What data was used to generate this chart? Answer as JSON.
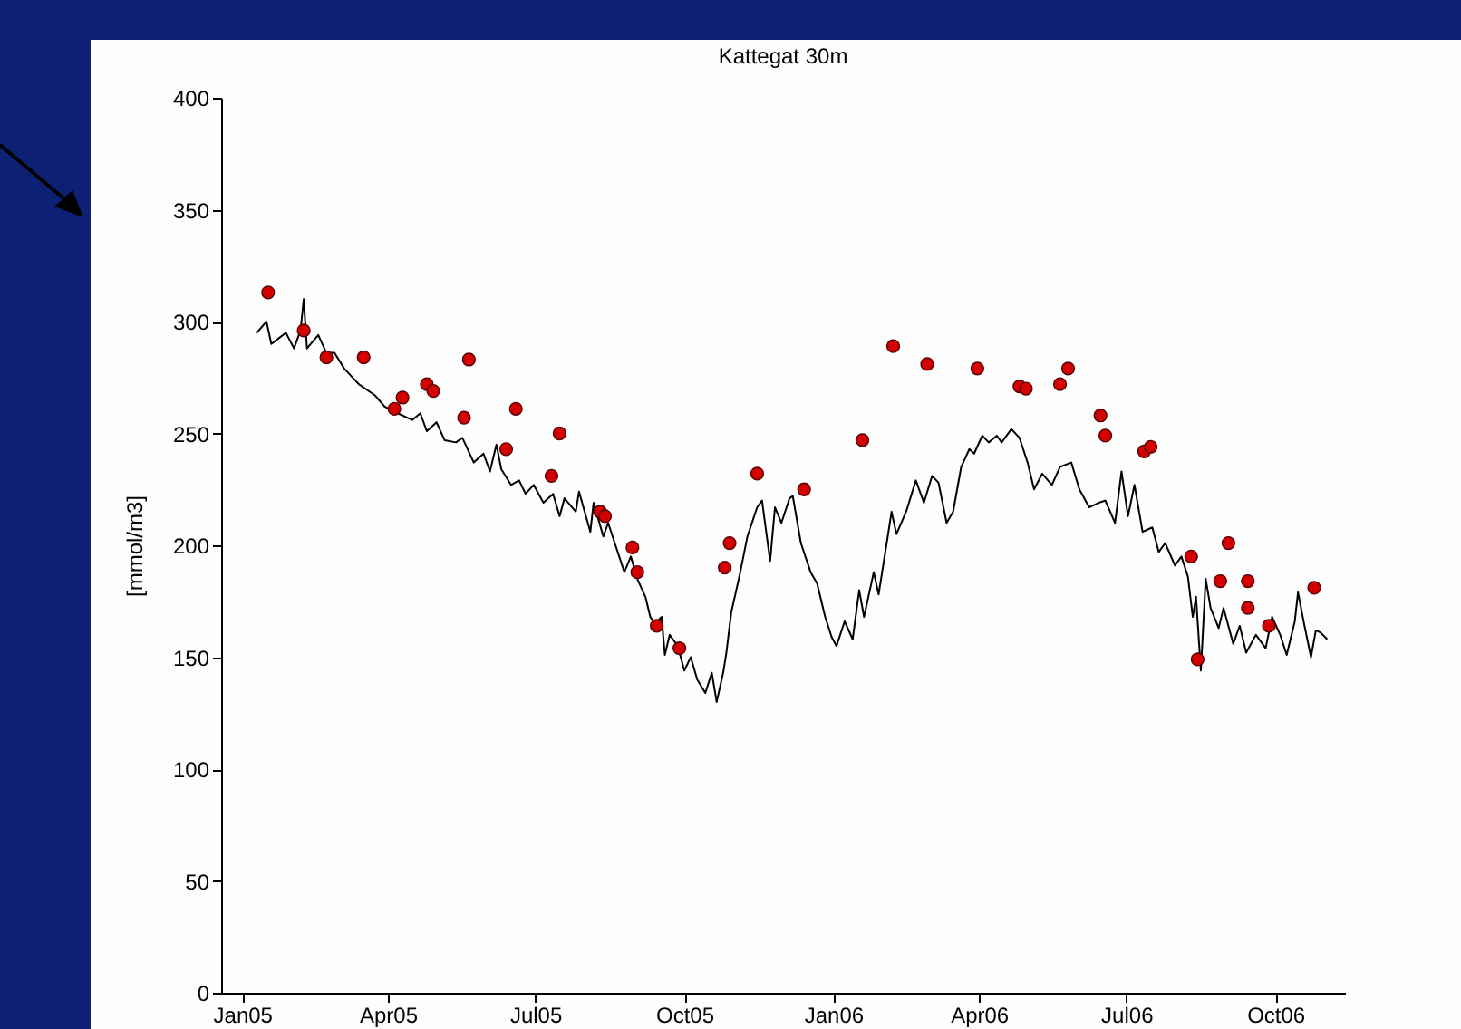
{
  "chart_data": {
    "type": "line",
    "title": "Kattegat 30m",
    "ylabel": "[mmol/m3]",
    "xlim": [
      "2004-12-19",
      "2006-11-13"
    ],
    "ylim": [
      0,
      400
    ],
    "xticks": [
      {
        "value": "2005-01-01",
        "label": "Jan05"
      },
      {
        "value": "2005-04-01",
        "label": "Apr05"
      },
      {
        "value": "2005-07-01",
        "label": "Jul05"
      },
      {
        "value": "2005-10-01",
        "label": "Oct05"
      },
      {
        "value": "2006-01-01",
        "label": "Jan06"
      },
      {
        "value": "2006-04-01",
        "label": "Apr06"
      },
      {
        "value": "2006-07-01",
        "label": "Jul06"
      },
      {
        "value": "2006-10-01",
        "label": "Oct06"
      }
    ],
    "yticks": [
      0,
      50,
      100,
      150,
      200,
      250,
      300,
      350,
      400
    ],
    "grid": false,
    "series": [
      {
        "type": "line",
        "color": "#000000",
        "line_style": "solid",
        "x": [
          "2005-01-10",
          "2005-01-16",
          "2005-01-19",
          "2005-01-28",
          "2005-02-02",
          "2005-02-06",
          "2005-02-08",
          "2005-02-10",
          "2005-02-17",
          "2005-02-22",
          "2005-02-27",
          "2005-03-05",
          "2005-03-14",
          "2005-03-24",
          "2005-03-30",
          "2005-04-07",
          "2005-04-16",
          "2005-04-21",
          "2005-04-25",
          "2005-05-01",
          "2005-05-06",
          "2005-05-13",
          "2005-05-17",
          "2005-05-24",
          "2005-05-30",
          "2005-06-03",
          "2005-06-07",
          "2005-06-10",
          "2005-06-16",
          "2005-06-21",
          "2005-06-25",
          "2005-06-30",
          "2005-07-06",
          "2005-07-12",
          "2005-07-16",
          "2005-07-19",
          "2005-07-26",
          "2005-07-28",
          "2005-08-04",
          "2005-08-06",
          "2005-08-12",
          "2005-08-15",
          "2005-08-20",
          "2005-08-25",
          "2005-08-29",
          "2005-09-02",
          "2005-09-07",
          "2005-09-10",
          "2005-09-13",
          "2005-09-17",
          "2005-09-19",
          "2005-09-22",
          "2005-09-27",
          "2005-10-01",
          "2005-10-05",
          "2005-10-09",
          "2005-10-14",
          "2005-10-18",
          "2005-10-21",
          "2005-10-25",
          "2005-10-27",
          "2005-10-30",
          "2005-11-04",
          "2005-11-09",
          "2005-11-15",
          "2005-11-18",
          "2005-11-23",
          "2005-11-26",
          "2005-11-30",
          "2005-12-05",
          "2005-12-07",
          "2005-12-12",
          "2005-12-18",
          "2005-12-22",
          "2005-12-27",
          "2005-12-31",
          "2006-01-03",
          "2006-01-08",
          "2006-01-13",
          "2006-01-17",
          "2006-01-20",
          "2006-01-26",
          "2006-01-29",
          "2006-02-03",
          "2006-02-06",
          "2006-02-09",
          "2006-02-15",
          "2006-02-21",
          "2006-02-26",
          "2006-03-03",
          "2006-03-07",
          "2006-03-12",
          "2006-03-16",
          "2006-03-21",
          "2006-03-26",
          "2006-03-29",
          "2006-04-03",
          "2006-04-07",
          "2006-04-12",
          "2006-04-15",
          "2006-04-21",
          "2006-04-26",
          "2006-05-01",
          "2006-05-05",
          "2006-05-10",
          "2006-05-16",
          "2006-05-21",
          "2006-05-28",
          "2006-06-02",
          "2006-06-08",
          "2006-06-14",
          "2006-06-18",
          "2006-06-24",
          "2006-06-28",
          "2006-07-02",
          "2006-07-06",
          "2006-07-11",
          "2006-07-17",
          "2006-07-21",
          "2006-07-25",
          "2006-07-31",
          "2006-08-04",
          "2006-08-08",
          "2006-08-11",
          "2006-08-13",
          "2006-08-16",
          "2006-08-19",
          "2006-08-22",
          "2006-08-27",
          "2006-08-30",
          "2006-09-05",
          "2006-09-09",
          "2006-09-13",
          "2006-09-19",
          "2006-09-25",
          "2006-09-29",
          "2006-10-04",
          "2006-10-08",
          "2006-10-13",
          "2006-10-15",
          "2006-10-19",
          "2006-10-23",
          "2006-10-26",
          "2006-10-29",
          "2006-11-02"
        ],
        "values": [
          295,
          300,
          290,
          295,
          288,
          296,
          310,
          288,
          294,
          286,
          286,
          279,
          272,
          267,
          262,
          259,
          256,
          259,
          251,
          255,
          247,
          246,
          248,
          237,
          241,
          233,
          245,
          234,
          227,
          229,
          223,
          227,
          219,
          223,
          213,
          221,
          215,
          224,
          206,
          219,
          204,
          210,
          199,
          188,
          195,
          185,
          177,
          168,
          165,
          168,
          151,
          160,
          155,
          144,
          150,
          140,
          134,
          143,
          130,
          143,
          152,
          170,
          186,
          204,
          217,
          220,
          193,
          217,
          210,
          221,
          222,
          201,
          188,
          183,
          168,
          159,
          155,
          166,
          158,
          180,
          168,
          188,
          178,
          201,
          215,
          205,
          215,
          229,
          219,
          231,
          228,
          210,
          215,
          235,
          243,
          241,
          249,
          246,
          249,
          246,
          252,
          248,
          237,
          225,
          232,
          227,
          235,
          237,
          225,
          217,
          219,
          220,
          210,
          233,
          213,
          227,
          206,
          208,
          197,
          201,
          191,
          195,
          186,
          168,
          177,
          144,
          185,
          172,
          163,
          172,
          156,
          164,
          152,
          160,
          154,
          168,
          160,
          151,
          166,
          179,
          164,
          150,
          162,
          161,
          158
        ]
      },
      {
        "type": "scatter",
        "color": "#d40000",
        "marker": "circle",
        "x": [
          "2005-01-17",
          "2005-02-08",
          "2005-02-22",
          "2005-03-17",
          "2005-04-05",
          "2005-04-10",
          "2005-04-25",
          "2005-04-29",
          "2005-05-18",
          "2005-05-21",
          "2005-06-13",
          "2005-06-19",
          "2005-07-11",
          "2005-07-16",
          "2005-08-10",
          "2005-08-13",
          "2005-08-30",
          "2005-09-02",
          "2005-09-14",
          "2005-09-28",
          "2005-10-26",
          "2005-10-29",
          "2005-11-15",
          "2005-12-14",
          "2006-01-19",
          "2006-02-07",
          "2006-02-28",
          "2006-03-31",
          "2006-04-26",
          "2006-04-30",
          "2006-05-21",
          "2006-05-26",
          "2006-06-15",
          "2006-06-18",
          "2006-07-12",
          "2006-07-16",
          "2006-08-10",
          "2006-08-14",
          "2006-08-28",
          "2006-09-02",
          "2006-09-14",
          "2006-09-14",
          "2006-09-27",
          "2006-10-25"
        ],
        "values": [
          313,
          296,
          284,
          284,
          261,
          266,
          272,
          269,
          257,
          283,
          243,
          261,
          231,
          250,
          215,
          213,
          199,
          188,
          164,
          154,
          190,
          201,
          232,
          225,
          247,
          289,
          281,
          279,
          271,
          270,
          272,
          279,
          258,
          249,
          242,
          244,
          195,
          149,
          184,
          201,
          184,
          172,
          164,
          181
        ]
      }
    ]
  }
}
